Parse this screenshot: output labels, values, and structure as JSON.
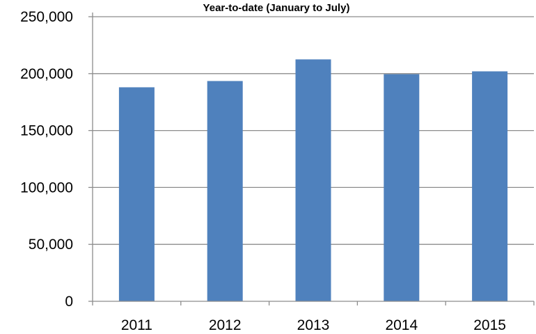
{
  "chart_data": {
    "type": "bar",
    "title": "Year-to-date (January to July)",
    "categories": [
      "2011",
      "2012",
      "2013",
      "2014",
      "2015"
    ],
    "values": [
      188000,
      193500,
      212500,
      199500,
      202000
    ],
    "ylim": [
      0,
      250000
    ],
    "yticks": [
      0,
      50000,
      100000,
      150000,
      200000,
      250000
    ],
    "ytick_labels": [
      "0",
      "50,000",
      "100,000",
      "150,000",
      "200,000",
      "250,000"
    ],
    "grid": true,
    "legend": "none",
    "bar_color": "#4f81bd"
  }
}
